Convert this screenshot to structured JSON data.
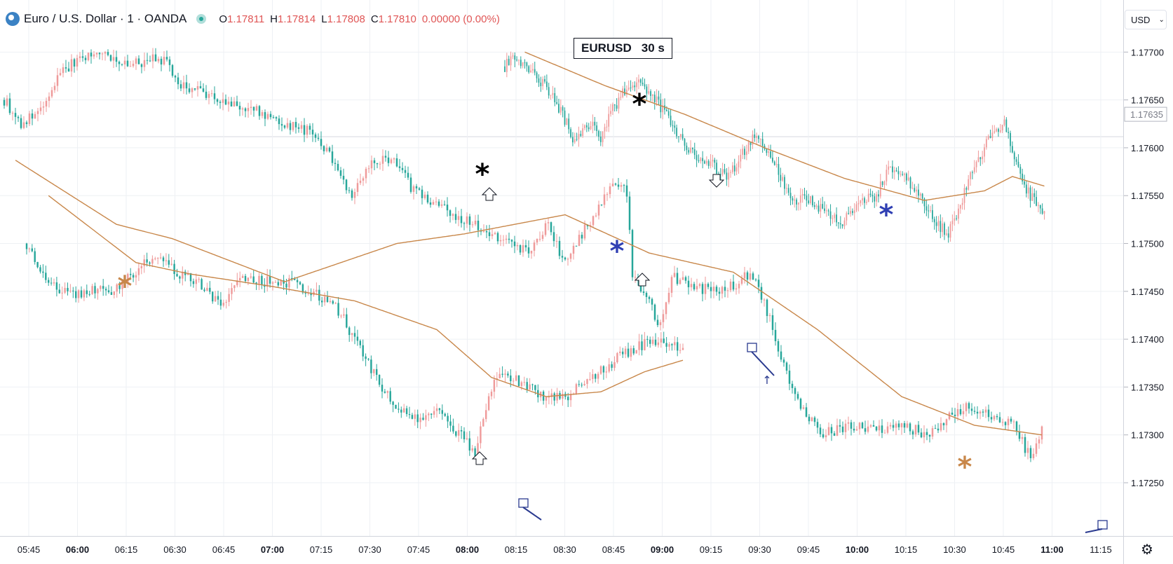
{
  "header": {
    "title": "Euro / U.S. Dollar · 1 · OANDA",
    "ohlc": [
      {
        "k": "O",
        "v": "1.17811"
      },
      {
        "k": "H",
        "v": "1.17814"
      },
      {
        "k": "L",
        "v": "1.17808"
      },
      {
        "k": "C",
        "v": "1.17810"
      }
    ],
    "change": "0.00000 (0.00%)"
  },
  "currency_label": "USD",
  "ticker_label": {
    "symbol": "EURUSD",
    "interval": "30 s"
  },
  "icons": {
    "logo": "currency-logo-icon",
    "status": "market-status-dot-icon",
    "settings": "gear-icon",
    "dropdown": "chevron-down-icon"
  },
  "colors": {
    "up": "#ef9a9a",
    "down": "#26a69a",
    "ma": "#c8874a",
    "drawing": "#2a3a8f",
    "star_black": "#000000",
    "star_blue": "#2f3fb3",
    "star_orange": "#c8874a"
  },
  "chart_data": {
    "type": "candlestick",
    "title": "Euro / U.S. Dollar · 1 · OANDA",
    "price_axis": {
      "ticks": [
        "1.17700",
        "1.17650",
        "1.17600",
        "1.17550",
        "1.17500",
        "1.17450",
        "1.17400",
        "1.17350",
        "1.17300",
        "1.17250"
      ],
      "range": [
        1.1722,
        1.1772
      ],
      "current_price_label": "1.17635"
    },
    "time_axis": {
      "ticks": [
        "05:45",
        "06:00",
        "06:15",
        "06:30",
        "06:45",
        "07:00",
        "07:15",
        "07:30",
        "07:45",
        "08:00",
        "08:15",
        "08:30",
        "08:45",
        "09:00",
        "09:15",
        "09:30",
        "09:45",
        "10:00",
        "10:15",
        "10:30",
        "10:45",
        "11:00",
        "11:15"
      ],
      "bold_ticks": [
        "06:00",
        "07:00",
        "08:00",
        "09:00",
        "10:00",
        "11:00"
      ]
    },
    "grid": true,
    "series": [
      {
        "anchors": [
          [
            0,
            1.1765
          ],
          [
            6,
            1.17625
          ],
          [
            14,
            1.1764
          ],
          [
            20,
            1.1768
          ],
          [
            28,
            1.17695
          ],
          [
            36,
            1.177
          ],
          [
            44,
            1.17685
          ],
          [
            52,
            1.17692
          ],
          [
            58,
            1.1769
          ],
          [
            62,
            1.17665
          ],
          [
            70,
            1.1766
          ],
          [
            80,
            1.17645
          ],
          [
            90,
            1.17638
          ],
          [
            100,
            1.17625
          ],
          [
            110,
            1.17615
          ],
          [
            118,
            1.17585
          ],
          [
            124,
            1.1755
          ],
          [
            130,
            1.17582
          ],
          [
            138,
            1.1759
          ],
          [
            146,
            1.17555
          ],
          [
            154,
            1.1754
          ],
          [
            160,
            1.1753
          ],
          [
            168,
            1.1752
          ],
          [
            176,
            1.17505
          ],
          [
            182,
            1.17497
          ],
          [
            188,
            1.17492
          ],
          [
            194,
            1.1752
          ],
          [
            200,
            1.17478
          ],
          [
            208,
            1.1752
          ],
          [
            216,
            1.1756
          ],
          [
            222,
            1.17555
          ],
          [
            224,
            1.1747
          ],
          [
            230,
            1.1744
          ],
          [
            234,
            1.17412
          ],
          [
            238,
            1.17465
          ],
          [
            246,
            1.17455
          ],
          [
            254,
            1.1745
          ],
          [
            262,
            1.17458
          ],
          [
            266,
            1.1747
          ],
          [
            272,
            1.1743
          ],
          [
            278,
            1.1737
          ],
          [
            284,
            1.1733
          ],
          [
            292,
            1.173
          ],
          [
            300,
            1.1731
          ],
          [
            310,
            1.17305
          ],
          [
            320,
            1.1731
          ],
          [
            330,
            1.173
          ],
          [
            336,
            1.17318
          ],
          [
            344,
            1.1733
          ],
          [
            352,
            1.1732
          ],
          [
            360,
            1.1731
          ],
          [
            366,
            1.17275
          ],
          [
            370,
            1.17305
          ]
        ],
        "ma_anchors": [
          [
            4,
            1.17587
          ],
          [
            40,
            1.1752
          ],
          [
            60,
            1.17505
          ],
          [
            100,
            1.1746
          ],
          [
            140,
            1.175
          ],
          [
            164,
            1.1751
          ],
          [
            200,
            1.1753
          ],
          [
            230,
            1.1749
          ],
          [
            260,
            1.1747
          ],
          [
            290,
            1.1741
          ],
          [
            320,
            1.1734
          ],
          [
            346,
            1.1731
          ],
          [
            370,
            1.173
          ]
        ]
      },
      {
        "anchors": [
          [
            0,
            1.175
          ],
          [
            8,
            1.17462
          ],
          [
            16,
            1.17445
          ],
          [
            24,
            1.17452
          ],
          [
            32,
            1.1745
          ],
          [
            38,
            1.17465
          ],
          [
            44,
            1.17485
          ],
          [
            50,
            1.1748
          ],
          [
            56,
            1.17468
          ],
          [
            62,
            1.17462
          ],
          [
            68,
            1.17445
          ],
          [
            72,
            1.17435
          ],
          [
            78,
            1.17465
          ],
          [
            84,
            1.1746
          ],
          [
            92,
            1.17462
          ],
          [
            100,
            1.17455
          ],
          [
            108,
            1.17443
          ],
          [
            114,
            1.1743
          ],
          [
            120,
            1.174
          ],
          [
            126,
            1.17368
          ],
          [
            132,
            1.1734
          ],
          [
            138,
            1.17325
          ],
          [
            144,
            1.17318
          ],
          [
            150,
            1.17325
          ],
          [
            158,
            1.17302
          ],
          [
            164,
            1.1728
          ],
          [
            168,
            1.1733
          ],
          [
            172,
            1.17365
          ],
          [
            178,
            1.1736
          ],
          [
            186,
            1.17345
          ],
          [
            192,
            1.17338
          ],
          [
            198,
            1.1734
          ],
          [
            204,
            1.17355
          ],
          [
            210,
            1.17367
          ],
          [
            218,
            1.17385
          ],
          [
            226,
            1.17395
          ],
          [
            234,
            1.17398
          ],
          [
            240,
            1.17387
          ]
        ],
        "ma_anchors": [
          [
            8,
            1.1755
          ],
          [
            40,
            1.1748
          ],
          [
            60,
            1.17468
          ],
          [
            90,
            1.17455
          ],
          [
            120,
            1.1744
          ],
          [
            150,
            1.1741
          ],
          [
            170,
            1.1736
          ],
          [
            190,
            1.1734
          ],
          [
            210,
            1.17345
          ],
          [
            226,
            1.17366
          ],
          [
            240,
            1.17378
          ]
        ]
      },
      {
        "anchors": [
          [
            0,
            1.17685
          ],
          [
            4,
            1.17695
          ],
          [
            12,
            1.1768
          ],
          [
            18,
            1.1767
          ],
          [
            24,
            1.17655
          ],
          [
            30,
            1.1763
          ],
          [
            34,
            1.1761
          ],
          [
            38,
            1.17615
          ],
          [
            44,
            1.17625
          ],
          [
            48,
            1.1761
          ],
          [
            54,
            1.1764
          ],
          [
            60,
            1.1766
          ],
          [
            66,
            1.1767
          ],
          [
            72,
            1.1766
          ],
          [
            78,
            1.17642
          ],
          [
            84,
            1.17625
          ],
          [
            90,
            1.176
          ],
          [
            96,
            1.1759
          ],
          [
            102,
            1.17585
          ],
          [
            108,
            1.17575
          ],
          [
            112,
            1.1757
          ],
          [
            118,
            1.1759
          ],
          [
            124,
            1.1761
          ],
          [
            128,
            1.1761
          ],
          [
            134,
            1.1759
          ],
          [
            140,
            1.1756
          ],
          [
            146,
            1.17545
          ],
          [
            150,
            1.17548
          ],
          [
            156,
            1.1754
          ],
          [
            162,
            1.1753
          ],
          [
            168,
            1.1752
          ],
          [
            172,
            1.1753
          ],
          [
            180,
            1.17545
          ],
          [
            186,
            1.1755
          ],
          [
            192,
            1.1758
          ],
          [
            198,
            1.17575
          ],
          [
            204,
            1.1756
          ],
          [
            210,
            1.1754
          ],
          [
            216,
            1.1752
          ],
          [
            222,
            1.1751
          ],
          [
            228,
            1.1754
          ],
          [
            234,
            1.1758
          ],
          [
            240,
            1.176
          ],
          [
            246,
            1.1762
          ],
          [
            250,
            1.17625
          ],
          [
            254,
            1.176
          ],
          [
            260,
            1.1756
          ],
          [
            266,
            1.1754
          ],
          [
            270,
            1.1753
          ]
        ],
        "ma_anchors": [
          [
            10,
            1.177
          ],
          [
            50,
            1.17665
          ],
          [
            90,
            1.17635
          ],
          [
            130,
            1.176
          ],
          [
            170,
            1.17568
          ],
          [
            210,
            1.17545
          ],
          [
            240,
            1.17555
          ],
          [
            254,
            1.1757
          ],
          [
            270,
            1.1756
          ]
        ]
      }
    ]
  }
}
